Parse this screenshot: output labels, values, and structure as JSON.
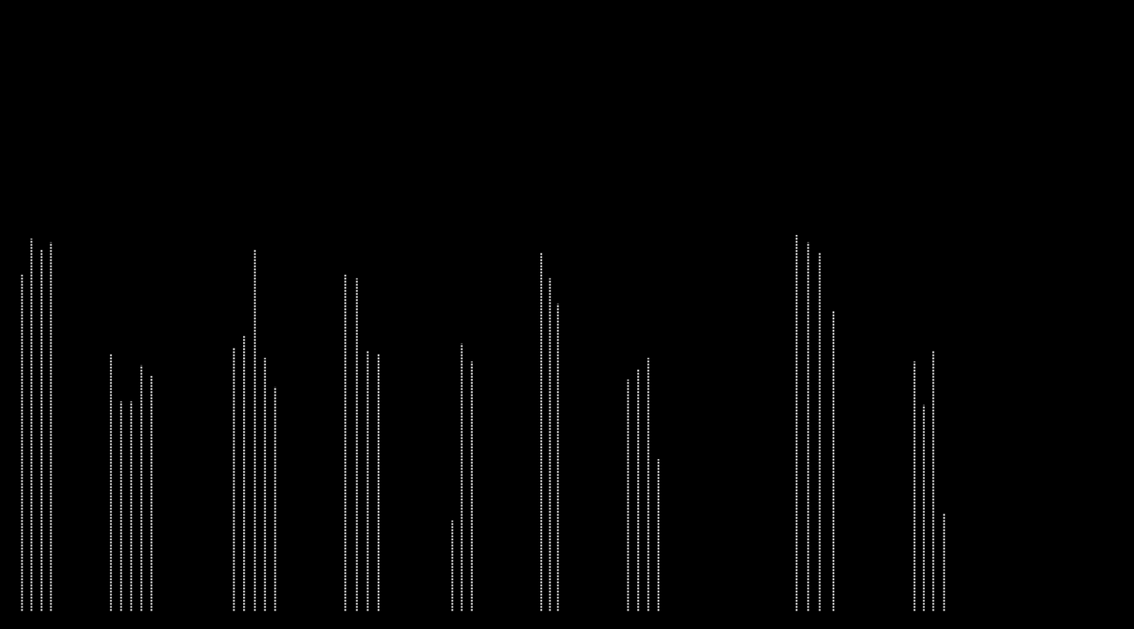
{
  "chart_data": {
    "type": "rule",
    "x": [
      30,
      43,
      57,
      70,
      153,
      167,
      181,
      195,
      209,
      323,
      337,
      352,
      366,
      380,
      477,
      493,
      508,
      523,
      625,
      638,
      652,
      748,
      760,
      771,
      868,
      882,
      896,
      910,
      1101,
      1117,
      1133,
      1152,
      1264,
      1277,
      1290,
      1305
    ],
    "values": [
      490,
      540,
      525,
      535,
      380,
      315,
      315,
      365,
      350,
      390,
      405,
      525,
      375,
      335,
      490,
      485,
      385,
      380,
      150,
      395,
      370,
      520,
      485,
      450,
      345,
      360,
      375,
      235,
      545,
      535,
      520,
      440,
      370,
      310,
      385,
      160
    ],
    "base": 25,
    "xlim": [
      0,
      1568
    ],
    "ylim": [
      0,
      870
    ],
    "color": "#d9d9d9",
    "line_style": "dotted",
    "tick_labels": false,
    "grid": false
  }
}
